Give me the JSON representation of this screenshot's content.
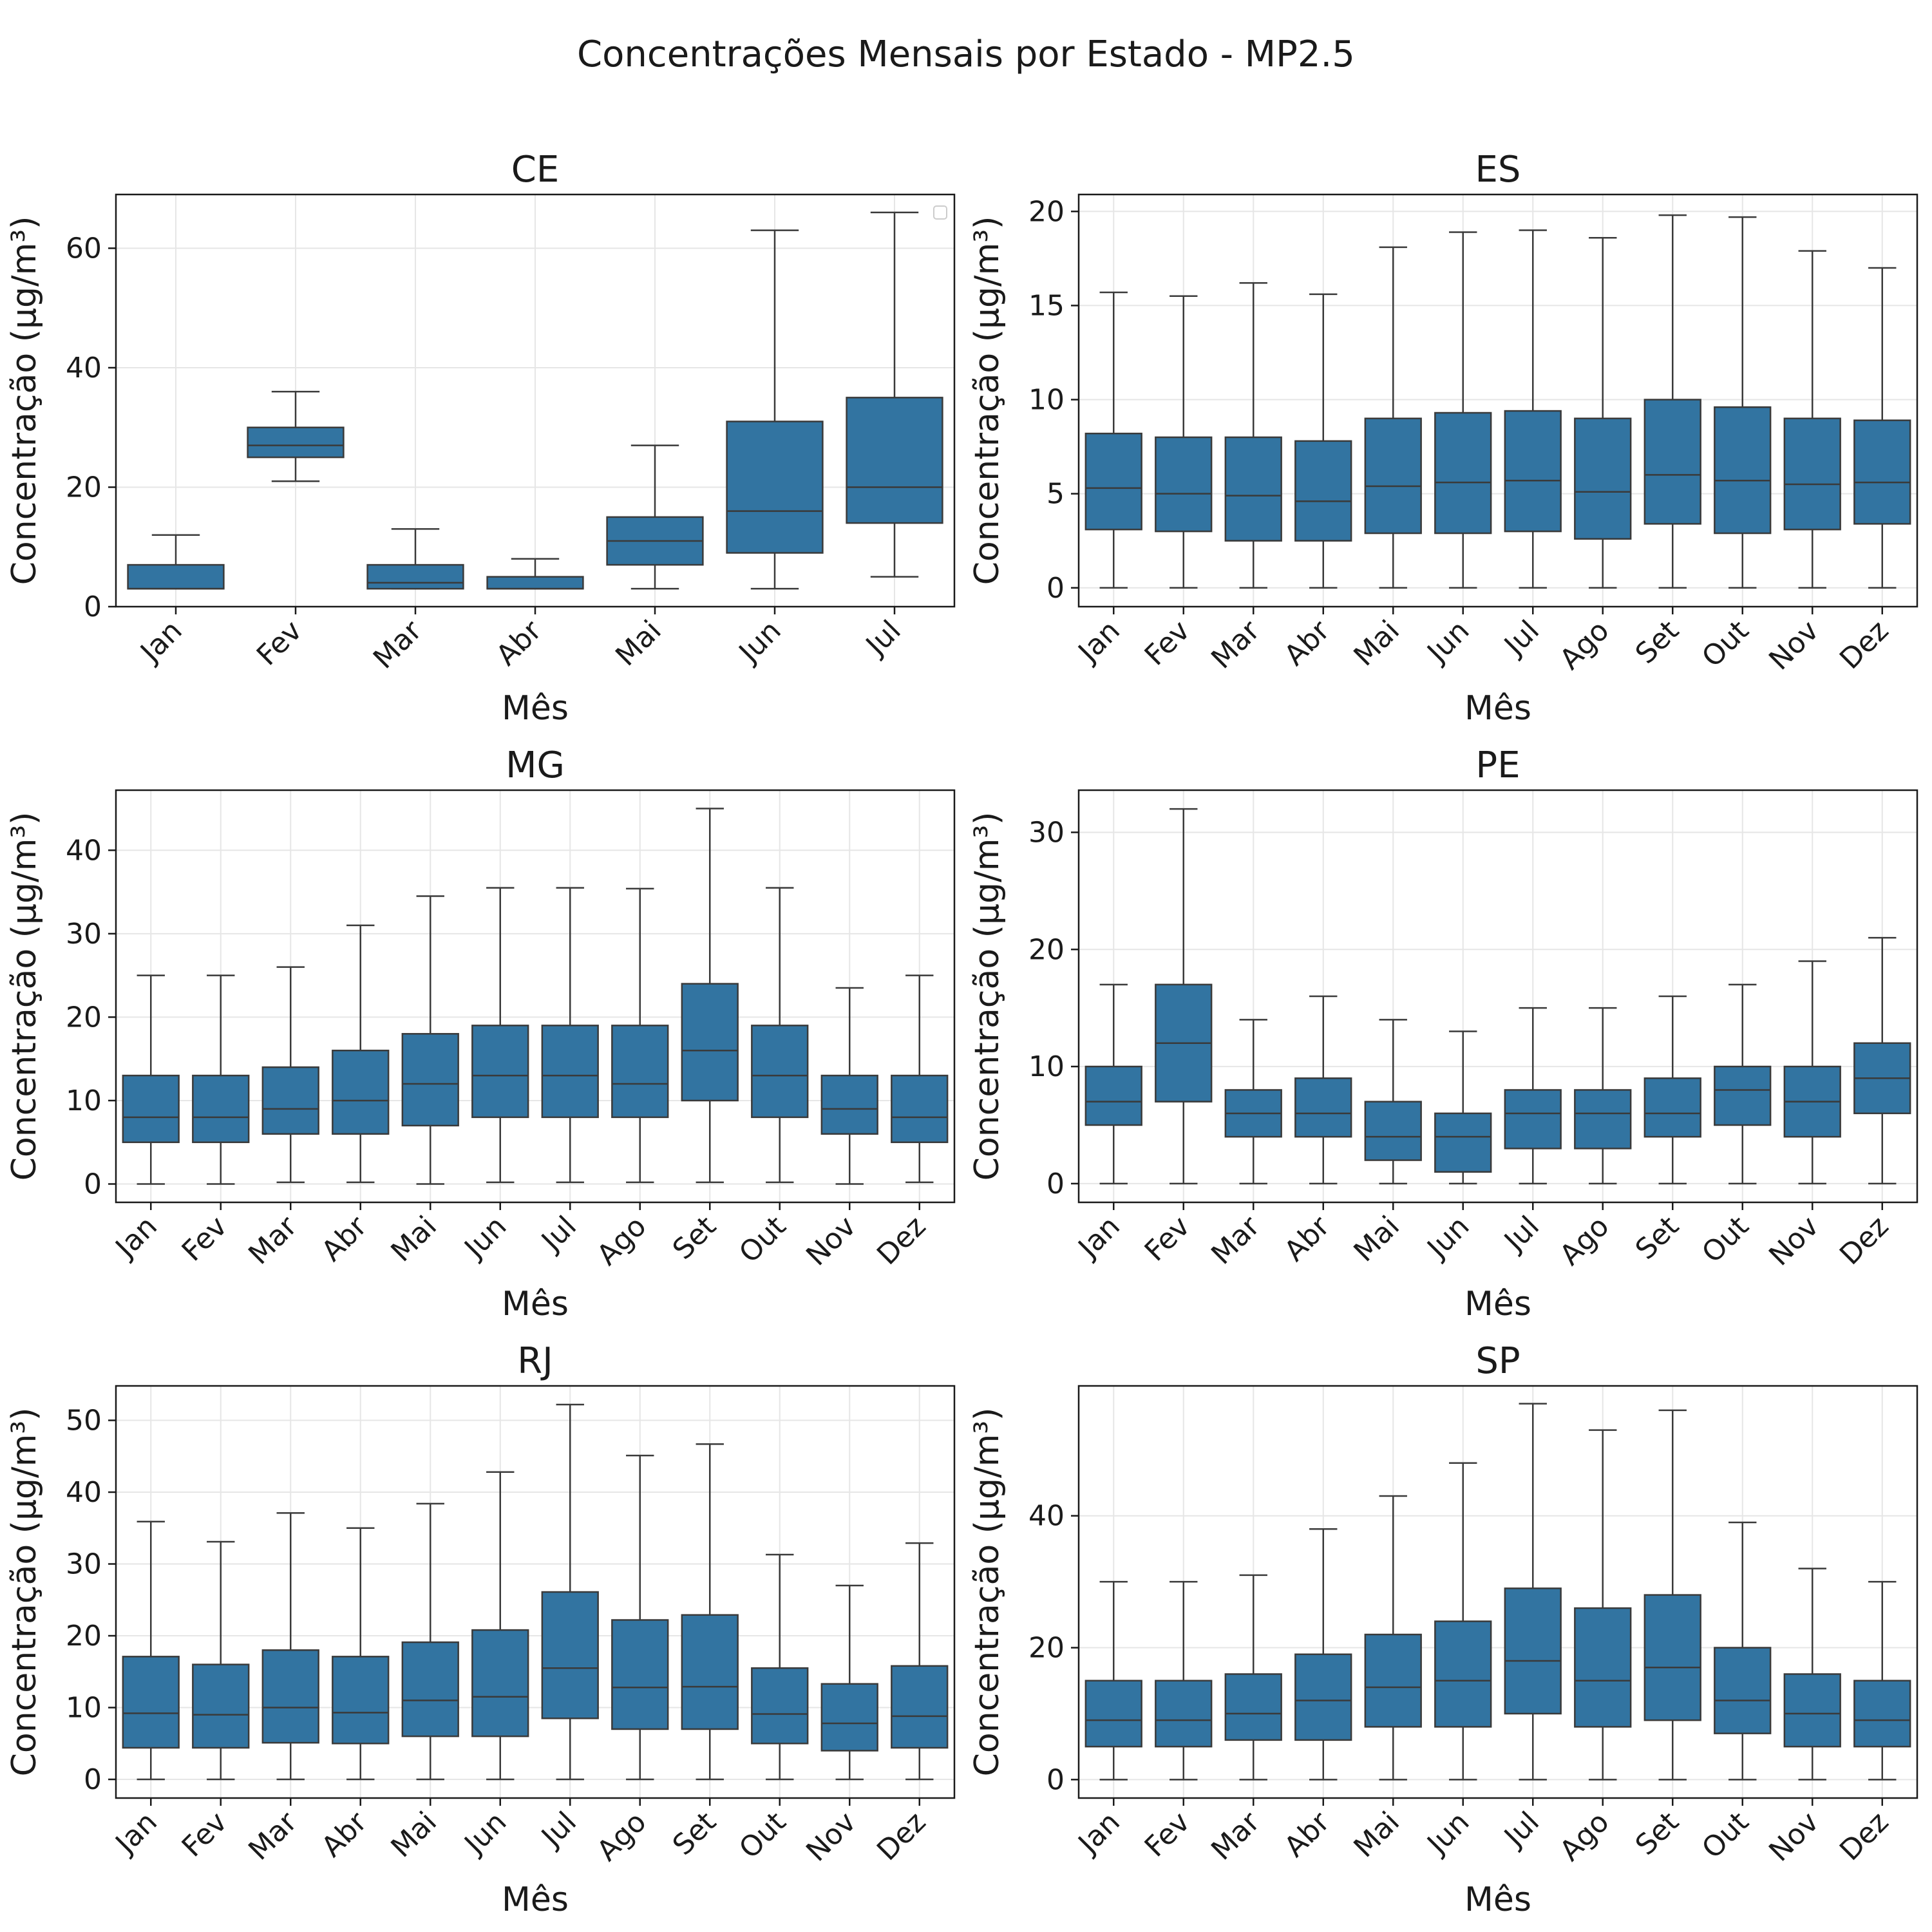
{
  "title": "Concentrações Mensais por Estado - MP2.5",
  "colors": {
    "box": "#3274a1",
    "line": "#3a3a3a",
    "grid": "#e6e6e6",
    "frame": "#1a1a1a"
  },
  "chart_data": [
    {
      "type": "box",
      "title": "CE",
      "xlabel": "Mês",
      "ylabel": "Concentração (µg/m³)",
      "ylim": [
        0,
        69
      ],
      "yticks": [
        0,
        20,
        40,
        60
      ],
      "grid": true,
      "legend": "top-right (empty)",
      "categories": [
        "Jan",
        "Fev",
        "Mar",
        "Abr",
        "Mai",
        "Jun",
        "Jul"
      ],
      "boxes": [
        {
          "whislo": 3,
          "q1": 3,
          "med": 3,
          "q3": 7,
          "whishi": 12
        },
        {
          "whislo": 21,
          "q1": 25,
          "med": 27,
          "q3": 30,
          "whishi": 36
        },
        {
          "whislo": 3,
          "q1": 3,
          "med": 4,
          "q3": 7,
          "whishi": 13
        },
        {
          "whislo": 3,
          "q1": 3,
          "med": 3,
          "q3": 5,
          "whishi": 8
        },
        {
          "whislo": 3,
          "q1": 7,
          "med": 11,
          "q3": 15,
          "whishi": 27
        },
        {
          "whislo": 3,
          "q1": 9,
          "med": 16,
          "q3": 31,
          "whishi": 63
        },
        {
          "whislo": 5,
          "q1": 14,
          "med": 20,
          "q3": 35,
          "whishi": 66
        }
      ]
    },
    {
      "type": "box",
      "title": "ES",
      "xlabel": "Mês",
      "ylabel": "Concentração (µg/m³)",
      "ylim": [
        -1,
        20.9
      ],
      "yticks": [
        0,
        5,
        10,
        15,
        20
      ],
      "grid": true,
      "categories": [
        "Jan",
        "Fev",
        "Mar",
        "Abr",
        "Mai",
        "Jun",
        "Jul",
        "Ago",
        "Set",
        "Out",
        "Nov",
        "Dez"
      ],
      "boxes": [
        {
          "whislo": 0,
          "q1": 3.1,
          "med": 5.3,
          "q3": 8.2,
          "whishi": 15.7
        },
        {
          "whislo": 0,
          "q1": 3.0,
          "med": 5.0,
          "q3": 8.0,
          "whishi": 15.5
        },
        {
          "whislo": 0,
          "q1": 2.5,
          "med": 4.9,
          "q3": 8.0,
          "whishi": 16.2
        },
        {
          "whislo": 0,
          "q1": 2.5,
          "med": 4.6,
          "q3": 7.8,
          "whishi": 15.6
        },
        {
          "whislo": 0,
          "q1": 2.9,
          "med": 5.4,
          "q3": 9.0,
          "whishi": 18.1
        },
        {
          "whislo": 0,
          "q1": 2.9,
          "med": 5.6,
          "q3": 9.3,
          "whishi": 18.9
        },
        {
          "whislo": 0,
          "q1": 3.0,
          "med": 5.7,
          "q3": 9.4,
          "whishi": 19.0
        },
        {
          "whislo": 0,
          "q1": 2.6,
          "med": 5.1,
          "q3": 9.0,
          "whishi": 18.6
        },
        {
          "whislo": 0,
          "q1": 3.4,
          "med": 6.0,
          "q3": 10.0,
          "whishi": 19.8
        },
        {
          "whislo": 0,
          "q1": 2.9,
          "med": 5.7,
          "q3": 9.6,
          "whishi": 19.7
        },
        {
          "whislo": 0,
          "q1": 3.1,
          "med": 5.5,
          "q3": 9.0,
          "whishi": 17.9
        },
        {
          "whislo": 0,
          "q1": 3.4,
          "med": 5.6,
          "q3": 8.9,
          "whishi": 17.0
        }
      ]
    },
    {
      "type": "box",
      "title": "MG",
      "xlabel": "Mês",
      "ylabel": "Concentração (µg/m³)",
      "ylim": [
        -2.2,
        47.2
      ],
      "yticks": [
        0,
        10,
        20,
        30,
        40
      ],
      "grid": true,
      "categories": [
        "Jan",
        "Fev",
        "Mar",
        "Abr",
        "Mai",
        "Jun",
        "Jul",
        "Ago",
        "Set",
        "Out",
        "Nov",
        "Dez"
      ],
      "boxes": [
        {
          "whislo": 0,
          "q1": 5,
          "med": 8,
          "q3": 13,
          "whishi": 25
        },
        {
          "whislo": 0,
          "q1": 5,
          "med": 8,
          "q3": 13,
          "whishi": 25
        },
        {
          "whislo": 0.2,
          "q1": 6,
          "med": 9,
          "q3": 14,
          "whishi": 26
        },
        {
          "whislo": 0.2,
          "q1": 6,
          "med": 10,
          "q3": 16,
          "whishi": 31
        },
        {
          "whislo": 0,
          "q1": 7,
          "med": 12,
          "q3": 18,
          "whishi": 34.5
        },
        {
          "whislo": 0.2,
          "q1": 8,
          "med": 13,
          "q3": 19,
          "whishi": 35.5
        },
        {
          "whislo": 0.2,
          "q1": 8,
          "med": 13,
          "q3": 19,
          "whishi": 35.5
        },
        {
          "whislo": 0.2,
          "q1": 8,
          "med": 12,
          "q3": 19,
          "whishi": 35.4
        },
        {
          "whislo": 0.2,
          "q1": 10,
          "med": 16,
          "q3": 24,
          "whishi": 45
        },
        {
          "whislo": 0.2,
          "q1": 8,
          "med": 13,
          "q3": 19,
          "whishi": 35.5
        },
        {
          "whislo": 0,
          "q1": 6,
          "med": 9,
          "q3": 13,
          "whishi": 23.5
        },
        {
          "whislo": 0.2,
          "q1": 5,
          "med": 8,
          "q3": 13,
          "whishi": 25
        }
      ]
    },
    {
      "type": "box",
      "title": "PE",
      "xlabel": "Mês",
      "ylabel": "Concentração (µg/m³)",
      "ylim": [
        -1.6,
        33.6
      ],
      "yticks": [
        0,
        10,
        20,
        30
      ],
      "grid": true,
      "categories": [
        "Jan",
        "Fev",
        "Mar",
        "Abr",
        "Mai",
        "Jun",
        "Jul",
        "Ago",
        "Set",
        "Out",
        "Nov",
        "Dez"
      ],
      "boxes": [
        {
          "whislo": 0,
          "q1": 5,
          "med": 7,
          "q3": 10,
          "whishi": 17
        },
        {
          "whislo": 0,
          "q1": 7,
          "med": 12,
          "q3": 17,
          "whishi": 32
        },
        {
          "whislo": 0,
          "q1": 4,
          "med": 6,
          "q3": 8,
          "whishi": 14
        },
        {
          "whislo": 0,
          "q1": 4,
          "med": 6,
          "q3": 9,
          "whishi": 16
        },
        {
          "whislo": 0,
          "q1": 2,
          "med": 4,
          "q3": 7,
          "whishi": 14
        },
        {
          "whislo": 0,
          "q1": 1,
          "med": 4,
          "q3": 6,
          "whishi": 13
        },
        {
          "whislo": 0,
          "q1": 3,
          "med": 6,
          "q3": 8,
          "whishi": 15
        },
        {
          "whislo": 0,
          "q1": 3,
          "med": 6,
          "q3": 8,
          "whishi": 15
        },
        {
          "whislo": 0,
          "q1": 4,
          "med": 6,
          "q3": 9,
          "whishi": 16
        },
        {
          "whislo": 0,
          "q1": 5,
          "med": 8,
          "q3": 10,
          "whishi": 17
        },
        {
          "whislo": 0,
          "q1": 4,
          "med": 7,
          "q3": 10,
          "whishi": 19
        },
        {
          "whislo": 0,
          "q1": 6,
          "med": 9,
          "q3": 12,
          "whishi": 21
        }
      ]
    },
    {
      "type": "box",
      "title": "RJ",
      "xlabel": "Mês",
      "ylabel": "Concentração (µg/m³)",
      "ylim": [
        -2.6,
        54.8
      ],
      "yticks": [
        0,
        10,
        20,
        30,
        40,
        50
      ],
      "grid": true,
      "categories": [
        "Jan",
        "Fev",
        "Mar",
        "Abr",
        "Mai",
        "Jun",
        "Jul",
        "Ago",
        "Set",
        "Out",
        "Nov",
        "Dez"
      ],
      "boxes": [
        {
          "whislo": 0,
          "q1": 4.4,
          "med": 9.2,
          "q3": 17.1,
          "whishi": 35.9
        },
        {
          "whislo": 0,
          "q1": 4.4,
          "med": 9.0,
          "q3": 16.0,
          "whishi": 33.1
        },
        {
          "whislo": 0,
          "q1": 5.1,
          "med": 10.0,
          "q3": 18.0,
          "whishi": 37.1
        },
        {
          "whislo": 0,
          "q1": 5.0,
          "med": 9.3,
          "q3": 17.1,
          "whishi": 35.0
        },
        {
          "whislo": 0,
          "q1": 6.0,
          "med": 11.0,
          "q3": 19.1,
          "whishi": 38.4
        },
        {
          "whislo": 0,
          "q1": 6.0,
          "med": 11.5,
          "q3": 20.8,
          "whishi": 42.8
        },
        {
          "whislo": 0,
          "q1": 8.5,
          "med": 15.5,
          "q3": 26.1,
          "whishi": 52.2
        },
        {
          "whislo": 0,
          "q1": 7.0,
          "med": 12.8,
          "q3": 22.2,
          "whishi": 45.1
        },
        {
          "whislo": 0,
          "q1": 7.0,
          "med": 12.9,
          "q3": 22.9,
          "whishi": 46.7
        },
        {
          "whislo": 0,
          "q1": 5.0,
          "med": 9.1,
          "q3": 15.5,
          "whishi": 31.3
        },
        {
          "whislo": 0,
          "q1": 4.0,
          "med": 7.8,
          "q3": 13.3,
          "whishi": 27.0
        },
        {
          "whislo": 0,
          "q1": 4.4,
          "med": 8.8,
          "q3": 15.8,
          "whishi": 32.9
        }
      ]
    },
    {
      "type": "box",
      "title": "SP",
      "xlabel": "Mês",
      "ylabel": "Concentração (µg/m³)",
      "ylim": [
        -2.8,
        59.7
      ],
      "yticks": [
        0,
        20,
        40
      ],
      "grid": true,
      "categories": [
        "Jan",
        "Fev",
        "Mar",
        "Abr",
        "Mai",
        "Jun",
        "Jul",
        "Ago",
        "Set",
        "Out",
        "Nov",
        "Dez"
      ],
      "boxes": [
        {
          "whislo": 0,
          "q1": 5,
          "med": 9,
          "q3": 15,
          "whishi": 30
        },
        {
          "whislo": 0,
          "q1": 5,
          "med": 9,
          "q3": 15,
          "whishi": 30
        },
        {
          "whislo": 0,
          "q1": 6,
          "med": 10,
          "q3": 16,
          "whishi": 31
        },
        {
          "whislo": 0,
          "q1": 6,
          "med": 12,
          "q3": 19,
          "whishi": 38
        },
        {
          "whislo": 0,
          "q1": 8,
          "med": 14,
          "q3": 22,
          "whishi": 43
        },
        {
          "whislo": 0,
          "q1": 8,
          "med": 15,
          "q3": 24,
          "whishi": 48
        },
        {
          "whislo": 0,
          "q1": 10,
          "med": 18,
          "q3": 29,
          "whishi": 57
        },
        {
          "whislo": 0,
          "q1": 8,
          "med": 15,
          "q3": 26,
          "whishi": 53
        },
        {
          "whislo": 0,
          "q1": 9,
          "med": 17,
          "q3": 28,
          "whishi": 56
        },
        {
          "whislo": 0,
          "q1": 7,
          "med": 12,
          "q3": 20,
          "whishi": 39
        },
        {
          "whislo": 0,
          "q1": 5,
          "med": 10,
          "q3": 16,
          "whishi": 32
        },
        {
          "whislo": 0,
          "q1": 5,
          "med": 9,
          "q3": 15,
          "whishi": 30
        }
      ]
    }
  ]
}
